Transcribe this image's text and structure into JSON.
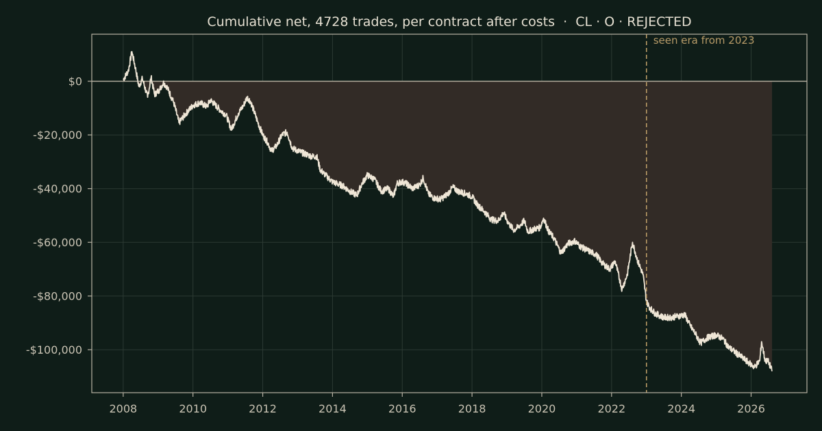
{
  "colors": {
    "background": "#0f1d18",
    "line": "#efe6d6",
    "fill": "#322b26",
    "grid": "#2c3a33",
    "axis": "#b9b3a4",
    "tick_text": "#c9c3b3",
    "title_text": "#e6e0d2",
    "era_line": "#c2a26a",
    "era_text": "#b79b68"
  },
  "chart_data": {
    "type": "area",
    "title": "Cumulative net, 4728 trades, per contract after costs  ·  CL · O · REJECTED",
    "xlabel": "",
    "ylabel": "",
    "xlim": [
      2007.1,
      2027.6
    ],
    "ylim": [
      -116000,
      17500
    ],
    "grid": true,
    "x_ticks": [
      2008,
      2010,
      2012,
      2014,
      2016,
      2018,
      2020,
      2022,
      2024,
      2026
    ],
    "x_tick_labels": [
      "2008",
      "2010",
      "2012",
      "2014",
      "2016",
      "2018",
      "2020",
      "2022",
      "2024",
      "2026"
    ],
    "y_ticks": [
      0,
      -20000,
      -40000,
      -60000,
      -80000,
      -100000
    ],
    "y_tick_labels": [
      "$0",
      "-$20,000",
      "-$40,000",
      "-$60,000",
      "-$80,000",
      "-$100,000"
    ],
    "annotation": {
      "x": 2023.0,
      "label": "seen era from 2023"
    },
    "series": [
      {
        "values": [
          [
            2008.0,
            500
          ],
          [
            2008.15,
            4000
          ],
          [
            2008.25,
            11000
          ],
          [
            2008.35,
            5000
          ],
          [
            2008.45,
            -2000
          ],
          [
            2008.55,
            1000
          ],
          [
            2008.7,
            -6000
          ],
          [
            2008.8,
            1500
          ],
          [
            2008.9,
            -5000
          ],
          [
            2009.05,
            -3000
          ],
          [
            2009.15,
            -500
          ],
          [
            2009.25,
            -2000
          ],
          [
            2009.45,
            -8000
          ],
          [
            2009.6,
            -15500
          ],
          [
            2009.8,
            -12000
          ],
          [
            2010.0,
            -9000
          ],
          [
            2010.2,
            -8000
          ],
          [
            2010.4,
            -9500
          ],
          [
            2010.5,
            -7000
          ],
          [
            2010.65,
            -9000
          ],
          [
            2010.8,
            -11000
          ],
          [
            2010.95,
            -12500
          ],
          [
            2011.1,
            -18000
          ],
          [
            2011.3,
            -12000
          ],
          [
            2011.45,
            -9000
          ],
          [
            2011.55,
            -6000
          ],
          [
            2011.65,
            -7500
          ],
          [
            2011.85,
            -15000
          ],
          [
            2012.0,
            -20000
          ],
          [
            2012.15,
            -23000
          ],
          [
            2012.25,
            -26000
          ],
          [
            2012.4,
            -24000
          ],
          [
            2012.55,
            -20000
          ],
          [
            2012.7,
            -19000
          ],
          [
            2012.85,
            -25000
          ],
          [
            2013.1,
            -26500
          ],
          [
            2013.4,
            -28000
          ],
          [
            2013.55,
            -28000
          ],
          [
            2013.65,
            -33000
          ],
          [
            2013.8,
            -35000
          ],
          [
            2014.0,
            -37500
          ],
          [
            2014.3,
            -39000
          ],
          [
            2014.5,
            -41000
          ],
          [
            2014.7,
            -42500
          ],
          [
            2014.85,
            -38000
          ],
          [
            2015.0,
            -35000
          ],
          [
            2015.2,
            -36500
          ],
          [
            2015.4,
            -41000
          ],
          [
            2015.6,
            -40000
          ],
          [
            2015.75,
            -43000
          ],
          [
            2015.85,
            -38000
          ],
          [
            2016.0,
            -37500
          ],
          [
            2016.1,
            -38000
          ],
          [
            2016.3,
            -40000
          ],
          [
            2016.5,
            -38500
          ],
          [
            2016.6,
            -36000
          ],
          [
            2016.75,
            -42000
          ],
          [
            2016.9,
            -43500
          ],
          [
            2017.1,
            -44000
          ],
          [
            2017.3,
            -42000
          ],
          [
            2017.45,
            -39500
          ],
          [
            2017.6,
            -41000
          ],
          [
            2017.85,
            -42000
          ],
          [
            2018.0,
            -43000
          ],
          [
            2018.15,
            -46000
          ],
          [
            2018.35,
            -48500
          ],
          [
            2018.55,
            -51500
          ],
          [
            2018.75,
            -52000
          ],
          [
            2018.9,
            -49000
          ],
          [
            2019.05,
            -53000
          ],
          [
            2019.2,
            -55500
          ],
          [
            2019.35,
            -54000
          ],
          [
            2019.5,
            -52000
          ],
          [
            2019.6,
            -56000
          ],
          [
            2019.8,
            -55000
          ],
          [
            2019.95,
            -54500
          ],
          [
            2020.05,
            -51000
          ],
          [
            2020.2,
            -56000
          ],
          [
            2020.35,
            -58500
          ],
          [
            2020.55,
            -64000
          ],
          [
            2020.75,
            -60500
          ],
          [
            2020.95,
            -59500
          ],
          [
            2021.1,
            -61500
          ],
          [
            2021.3,
            -63000
          ],
          [
            2021.55,
            -64500
          ],
          [
            2021.75,
            -68000
          ],
          [
            2021.95,
            -70000
          ],
          [
            2022.1,
            -67000
          ],
          [
            2022.3,
            -77500
          ],
          [
            2022.45,
            -72000
          ],
          [
            2022.6,
            -60000
          ],
          [
            2022.75,
            -67000
          ],
          [
            2022.9,
            -72000
          ],
          [
            2023.0,
            -82000
          ],
          [
            2023.1,
            -84500
          ],
          [
            2023.25,
            -86500
          ],
          [
            2023.5,
            -88000
          ],
          [
            2023.7,
            -88000
          ],
          [
            2023.9,
            -87500
          ],
          [
            2024.1,
            -87000
          ],
          [
            2024.25,
            -91000
          ],
          [
            2024.4,
            -94000
          ],
          [
            2024.55,
            -97500
          ],
          [
            2024.75,
            -95500
          ],
          [
            2025.0,
            -94500
          ],
          [
            2025.2,
            -96000
          ],
          [
            2025.35,
            -99000
          ],
          [
            2025.55,
            -101000
          ],
          [
            2025.75,
            -103000
          ],
          [
            2025.95,
            -105000
          ],
          [
            2026.1,
            -106500
          ],
          [
            2026.25,
            -104000
          ],
          [
            2026.3,
            -97000
          ],
          [
            2026.4,
            -104000
          ],
          [
            2026.5,
            -104500
          ],
          [
            2026.6,
            -108000
          ]
        ]
      }
    ]
  }
}
